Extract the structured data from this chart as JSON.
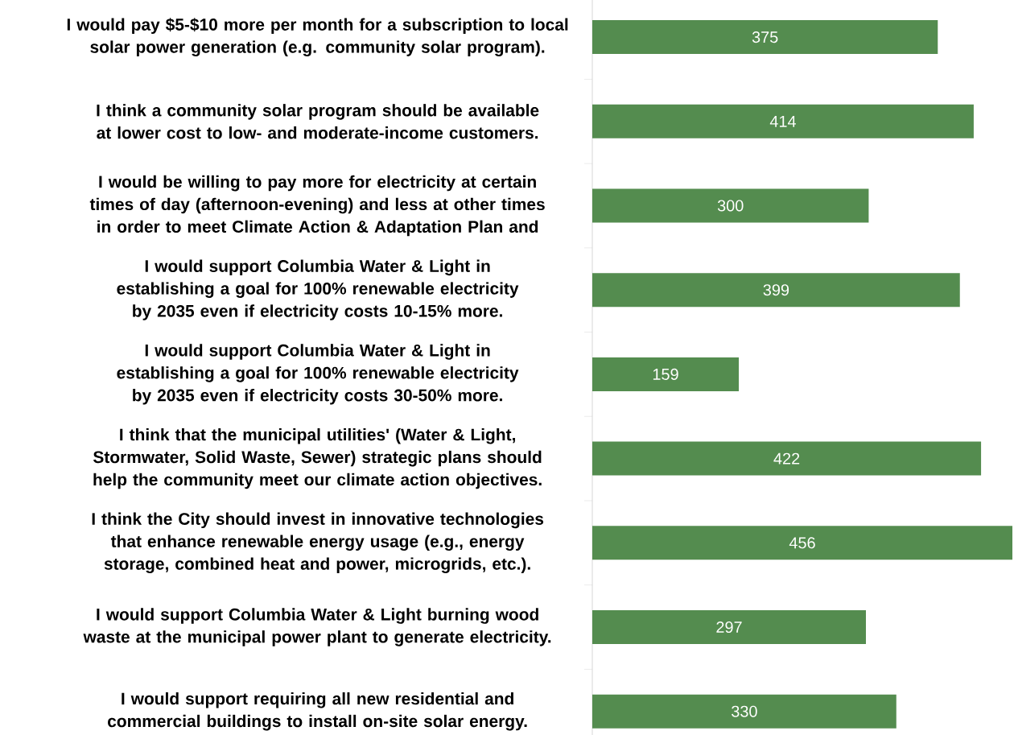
{
  "chart_data": {
    "type": "bar",
    "orientation": "horizontal",
    "data_labels": true,
    "color": "#548c4f",
    "categories": [
      "I would pay $5-$10 more per month for a subscription to local solar power generation (e.g. community solar program).",
      "I think a community solar program should be available at lower cost to low- and moderate-income customers.",
      "I would be willing to pay more for electricity at certain times of day (afternoon-evening) and less at other times in order to meet Climate Action & Adaptation Plan and",
      "I would support Columbia Water & Light in establishing a goal for 100% renewable electricity by 2035 even if electricity costs 10-15% more.",
      "I would support Columbia Water & Light in establishing a goal for 100% renewable electricity by 2035 even if electricity costs 30-50% more.",
      "I think that the municipal utilities' (Water & Light, Stormwater, Solid Waste, Sewer) strategic plans should help the community meet our climate action objectives.",
      "I think the City should invest in innovative technologies that enhance renewable energy usage (e.g., energy storage, combined heat and power, microgrids, etc.).",
      "I would support Columbia Water & Light burning wood waste at the municipal power plant to generate electricity.",
      "I would support requiring all new residential and commercial buildings to install on-site solar energy."
    ],
    "values": [
      375,
      414,
      300,
      399,
      159,
      422,
      456,
      297,
      330
    ]
  }
}
